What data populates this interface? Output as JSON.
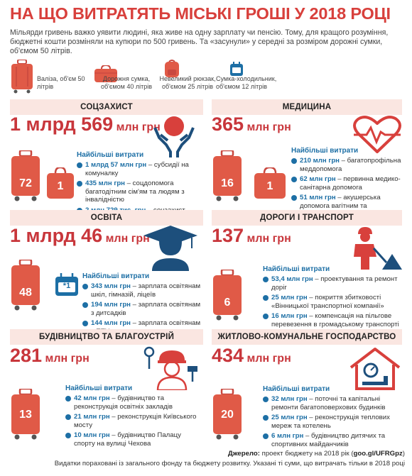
{
  "title": "НА ЩО ВИТРАТЯТЬ МІСЬКІ ГРОШІ У 2018 РОЦІ",
  "intro": "Мільярди гривень важко уявити людині, яка живе на одну зарплату чи пенсію. Тому, для кращого розуміння, бюджетні кошти розміняли на купюри по 500 гривень. Та «засунули» у середні за розміром дорожні сумки, об'ємом 50 літрів.",
  "legend": [
    {
      "label": "Валіза, об'єм 50 літрів",
      "icon": "suitcase-icon"
    },
    {
      "label": "Дорожня сумка, об'ємом 40 літрів",
      "icon": "travel-bag-icon"
    },
    {
      "label": "Невеликий рюкзак, об'ємом 25 літрів",
      "icon": "backpack-icon"
    },
    {
      "label": "Сумка-холодильник, об'ємом 12 літрів",
      "icon": "cooler-bag-icon"
    }
  ],
  "colors": {
    "accent": "#d8403c",
    "header_bg": "#fae6e1",
    "blue": "#1d6fa5",
    "suitcase": "#e05a47"
  },
  "head_label": "Найбільші витрати",
  "sections": [
    {
      "name": "СОЦЗАХИСТ",
      "amount_big": "1 млрд 569",
      "amount_unit": "млн грн",
      "counts": [
        "72",
        "1"
      ],
      "items": [
        {
          "v": "1 млрд 57 млн грн",
          "t": " – субсидії на комуналку"
        },
        {
          "v": "435 млн грн",
          "t": " – соцдопомога багатодітним сім'ям та людям з інвалідністю"
        },
        {
          "v": "2 млн 729 тис. грн",
          "t": " – соцзахист ветеранів війни та праці"
        }
      ]
    },
    {
      "name": "МЕДИЦИНА",
      "amount_big": "365",
      "amount_unit": "млн грн",
      "counts": [
        "16",
        "1"
      ],
      "items": [
        {
          "v": "210 млн грн",
          "t": " – багатопрофільна меддопомога"
        },
        {
          "v": "62 млн грн",
          "t": " – первинна медико-санітарна допомога"
        },
        {
          "v": "51 млн грн",
          "t": " – акушерська допомога вагітним та новонародженим"
        }
      ]
    },
    {
      "name": "ОСВІТА",
      "amount_big": "1 млрд 46",
      "amount_unit": "млн грн",
      "counts": [
        "48",
        "1"
      ],
      "items": [
        {
          "v": "343 млн грн",
          "t": " – зарплата освітянам шкіл, гімназій, ліцеїв"
        },
        {
          "v": "194 млн грн",
          "t": " – зарплата освітянам з дитсадків"
        },
        {
          "v": "144 млн грн",
          "t": " – зарплата освітянам з ПТУ"
        }
      ]
    },
    {
      "name": "ДОРОГИ І ТРАНСПОРТ",
      "amount_big": "137",
      "amount_unit": "млн грн",
      "counts": [
        "6"
      ],
      "items": [
        {
          "v": "53,4 млн грн",
          "t": " – проектування та ремонт доріг"
        },
        {
          "v": "25 млн грн",
          "t": " – покриття збитковості «Вінницької транспортної компанії»"
        },
        {
          "v": "16 млн грн",
          "t": " – компенсація на пільгове перевезення в громадському транспорті студентів, учнів, багатодітних батьків"
        }
      ]
    },
    {
      "name": "БУДІВНИЦТВО ТА БЛАГОУСТРІЙ",
      "amount_big": "281",
      "amount_unit": "млн грн",
      "counts": [
        "13"
      ],
      "items": [
        {
          "v": "42 млн грн",
          "t": " – будівництво та реконструкція освітніх закладів"
        },
        {
          "v": "21 млн грн",
          "t": " – реконструкція Київського мосту"
        },
        {
          "v": "10 млн грн",
          "t": " – будівництво Палацу спорту на вулиці Чехова"
        }
      ]
    },
    {
      "name": "ЖИТЛОВО-КОМУНАЛЬНЕ ГОСПОДАРСТВО",
      "amount_big": "434",
      "amount_unit": "млн грн",
      "counts": [
        "20"
      ],
      "items": [
        {
          "v": "32 млн грн",
          "t": " – поточні та капітальні ремонти багатоповерхових будинків"
        },
        {
          "v": "25 млн грн",
          "t": " – реконструкція теплових мереж та котелень"
        },
        {
          "v": "6 млн грн",
          "t": " – будівництво дитячих та спортивних майданчиків"
        }
      ]
    }
  ],
  "footer": {
    "source_label": "Джерело:",
    "source_text": " проект бюджету на 2018 рік (",
    "source_link": "goo.gl/UFRGpz",
    "source_end": ")",
    "note": "Видатки пораховані із загального фонду та бюджету розвитку. Указані ті суми, що витрачать тільки в 2018 році"
  }
}
